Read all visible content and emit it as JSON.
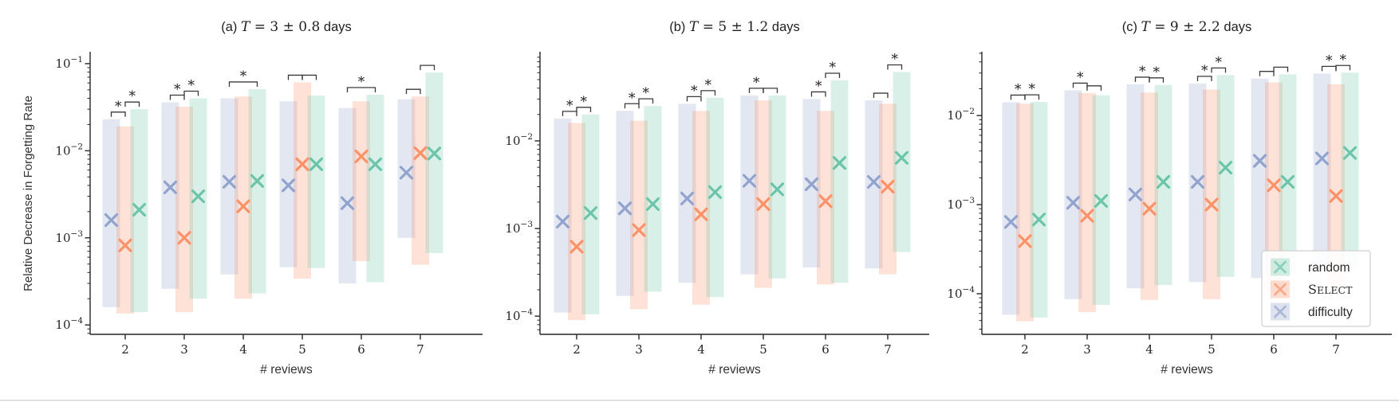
{
  "figure": {
    "ylabel": "Relative Decrease in Forgetting Rate",
    "xlabel": "# reviews",
    "categories": [
      "2",
      "3",
      "4",
      "5",
      "6",
      "7"
    ],
    "text_color": "#2b2b2b",
    "axis_color": "#262626",
    "bracket_color": "#3a3a3a",
    "bottom_rule_color": "#d8d8d8"
  },
  "legend": {
    "location": "lower-right-panel-c",
    "entries": [
      {
        "label": "random",
        "smallcaps": false,
        "color": "#66c2a5"
      },
      {
        "label": "Select",
        "smallcaps": true,
        "color": "#fc8d62"
      },
      {
        "label": "difficulty",
        "smallcaps": false,
        "color": "#8da0cb"
      }
    ]
  },
  "chart_data": [
    {
      "type": "bar",
      "panel": "a",
      "title": "(a) T = 3 ± 0.8 days",
      "title_segments": [
        {
          "t": "(a) ",
          "s": "sans"
        },
        {
          "t": "T",
          "s": "mathit"
        },
        {
          "t": " = 3 ± 0.8",
          "s": "math"
        },
        {
          "t": " days",
          "s": "sans"
        }
      ],
      "xlabel": "# reviews",
      "categories": [
        2,
        3,
        4,
        5,
        6,
        7
      ],
      "ylim": [
        7.8e-05,
        0.137
      ],
      "ytick_exponents": [
        -1,
        -2,
        -3,
        -4
      ],
      "grid": false,
      "series": [
        {
          "name": "difficulty",
          "color": "#8da0cb",
          "bar_low": [
            0.00016,
            0.00026,
            0.00038,
            0.00046,
            0.0003,
            0.001
          ],
          "bar_high": [
            0.023,
            0.036,
            0.04,
            0.037,
            0.031,
            0.039
          ],
          "marker": [
            0.0016,
            0.0038,
            0.0044,
            0.004,
            0.0025,
            0.0056
          ]
        },
        {
          "name": "Select",
          "color": "#fc8d62",
          "bar_low": [
            0.000135,
            0.00014,
            0.0002,
            0.00034,
            0.00054,
            0.00049
          ],
          "bar_high": [
            0.019,
            0.032,
            0.042,
            0.061,
            0.037,
            0.042
          ],
          "marker": [
            0.00082,
            0.001,
            0.0023,
            0.007,
            0.0086,
            0.0094
          ]
        },
        {
          "name": "random",
          "color": "#66c2a5",
          "bar_low": [
            0.00014,
            0.0002,
            0.00023,
            0.00045,
            0.00031,
            0.00067
          ],
          "bar_high": [
            0.03,
            0.04,
            0.051,
            0.043,
            0.044,
            0.079
          ],
          "marker": [
            0.0021,
            0.003,
            0.0045,
            0.007,
            0.007,
            0.0093
          ]
        }
      ],
      "significance": [
        {
          "group": 0,
          "bars": [
            0,
            1
          ],
          "star": true
        },
        {
          "group": 0,
          "bars": [
            1,
            2
          ],
          "star": true
        },
        {
          "group": 1,
          "bars": [
            0,
            1
          ],
          "star": true
        },
        {
          "group": 1,
          "bars": [
            1,
            2
          ],
          "star": true
        },
        {
          "group": 2,
          "bars": [
            0,
            2
          ],
          "star": true
        },
        {
          "group": 3,
          "bars": [
            0,
            1
          ],
          "star": false
        },
        {
          "group": 3,
          "bars": [
            1,
            2
          ],
          "star": false
        },
        {
          "group": 4,
          "bars": [
            0,
            2
          ],
          "star": true
        },
        {
          "group": 5,
          "bars": [
            0,
            1
          ],
          "star": false
        },
        {
          "group": 5,
          "bars": [
            1,
            2
          ],
          "star": false
        }
      ]
    },
    {
      "type": "bar",
      "panel": "b",
      "title": "(b) T = 5 ± 1.2 days",
      "title_segments": [
        {
          "t": "(b) ",
          "s": "sans"
        },
        {
          "t": "T",
          "s": "mathit"
        },
        {
          "t": " = 5 ± 1.2",
          "s": "math"
        },
        {
          "t": " days",
          "s": "sans"
        }
      ],
      "xlabel": "# reviews",
      "categories": [
        2,
        3,
        4,
        5,
        6,
        7
      ],
      "ylim": [
        6.2e-05,
        0.104
      ],
      "ytick_exponents": [
        -2,
        -3,
        -4
      ],
      "grid": false,
      "series": [
        {
          "name": "difficulty",
          "color": "#8da0cb",
          "bar_low": [
            0.00011,
            0.00017,
            0.00024,
            0.0003,
            0.00036,
            0.00035
          ],
          "bar_high": [
            0.018,
            0.022,
            0.0265,
            0.033,
            0.03,
            0.029
          ],
          "marker": [
            0.0012,
            0.0017,
            0.0022,
            0.0035,
            0.0032,
            0.0034
          ]
        },
        {
          "name": "Select",
          "color": "#fc8d62",
          "bar_low": [
            9e-05,
            0.00012,
            0.000135,
            0.00021,
            0.00023,
            0.0003
          ],
          "bar_high": [
            0.016,
            0.017,
            0.022,
            0.029,
            0.022,
            0.0265
          ],
          "marker": [
            0.00062,
            0.00096,
            0.00145,
            0.0019,
            0.00205,
            0.003
          ]
        },
        {
          "name": "random",
          "color": "#66c2a5",
          "bar_low": [
            0.000105,
            0.00019,
            0.000165,
            0.00027,
            0.00024,
            0.00054
          ],
          "bar_high": [
            0.02,
            0.025,
            0.031,
            0.033,
            0.049,
            0.061
          ],
          "marker": [
            0.0015,
            0.0019,
            0.0026,
            0.0028,
            0.0056,
            0.0064
          ]
        }
      ],
      "significance": [
        {
          "group": 0,
          "bars": [
            0,
            1
          ],
          "star": true
        },
        {
          "group": 0,
          "bars": [
            1,
            2
          ],
          "star": true
        },
        {
          "group": 1,
          "bars": [
            0,
            1
          ],
          "star": true
        },
        {
          "group": 1,
          "bars": [
            1,
            2
          ],
          "star": true
        },
        {
          "group": 2,
          "bars": [
            0,
            1
          ],
          "star": true
        },
        {
          "group": 2,
          "bars": [
            1,
            2
          ],
          "star": true
        },
        {
          "group": 3,
          "bars": [
            0,
            1
          ],
          "star": true
        },
        {
          "group": 3,
          "bars": [
            1,
            2
          ],
          "star": false
        },
        {
          "group": 4,
          "bars": [
            0,
            1
          ],
          "star": true
        },
        {
          "group": 4,
          "bars": [
            1,
            2
          ],
          "star": true
        },
        {
          "group": 5,
          "bars": [
            0,
            1
          ],
          "star": false
        },
        {
          "group": 5,
          "bars": [
            1,
            2
          ],
          "star": true
        }
      ]
    },
    {
      "type": "bar",
      "panel": "c",
      "title": "(c) T = 9 ± 2.2 days",
      "title_segments": [
        {
          "t": "(c) ",
          "s": "sans"
        },
        {
          "t": "T",
          "s": "mathit"
        },
        {
          "t": " = 9 ± 2.2",
          "s": "math"
        },
        {
          "t": " days",
          "s": "sans"
        }
      ],
      "xlabel": "# reviews",
      "categories": [
        2,
        3,
        4,
        5,
        6,
        7
      ],
      "ylim": [
        3.5e-05,
        0.052
      ],
      "ytick_exponents": [
        -2,
        -3,
        -4
      ],
      "grid": false,
      "series": [
        {
          "name": "difficulty",
          "color": "#8da0cb",
          "bar_low": [
            5.8e-05,
            8.7e-05,
            0.000115,
            0.000135,
            0.00015,
            0.00018
          ],
          "bar_high": [
            0.0141,
            0.0192,
            0.0224,
            0.0229,
            0.026,
            0.0296
          ],
          "marker": [
            0.00064,
            0.00105,
            0.0013,
            0.0018,
            0.0031,
            0.0033
          ]
        },
        {
          "name": "Select",
          "color": "#fc8d62",
          "bar_low": [
            4.9e-05,
            6.2e-05,
            8.5e-05,
            8.7e-05,
            0.0001,
            0.00012
          ],
          "bar_high": [
            0.0136,
            0.0179,
            0.0181,
            0.0196,
            0.0236,
            0.0224
          ],
          "marker": [
            0.00039,
            0.00075,
            0.0009,
            0.001,
            0.00165,
            0.00125
          ]
        },
        {
          "name": "random",
          "color": "#66c2a5",
          "bar_low": [
            5.4e-05,
            7.5e-05,
            0.000125,
            0.000155,
            0.00017,
            0.0002
          ],
          "bar_high": [
            0.0142,
            0.0169,
            0.022,
            0.0284,
            0.029,
            0.0303
          ],
          "marker": [
            0.00068,
            0.0011,
            0.0018,
            0.0026,
            0.0018,
            0.0038
          ]
        }
      ],
      "significance": [
        {
          "group": 0,
          "bars": [
            0,
            1
          ],
          "star": true
        },
        {
          "group": 0,
          "bars": [
            1,
            2
          ],
          "star": true
        },
        {
          "group": 1,
          "bars": [
            0,
            1
          ],
          "star": true
        },
        {
          "group": 1,
          "bars": [
            1,
            2
          ],
          "star": false
        },
        {
          "group": 2,
          "bars": [
            0,
            1
          ],
          "star": true
        },
        {
          "group": 2,
          "bars": [
            1,
            2
          ],
          "star": true
        },
        {
          "group": 3,
          "bars": [
            0,
            1
          ],
          "star": true
        },
        {
          "group": 3,
          "bars": [
            1,
            2
          ],
          "star": true
        },
        {
          "group": 4,
          "bars": [
            0,
            1
          ],
          "star": false
        },
        {
          "group": 4,
          "bars": [
            1,
            2
          ],
          "star": false
        },
        {
          "group": 5,
          "bars": [
            0,
            1
          ],
          "star": true
        },
        {
          "group": 5,
          "bars": [
            1,
            2
          ],
          "star": true
        }
      ]
    }
  ]
}
